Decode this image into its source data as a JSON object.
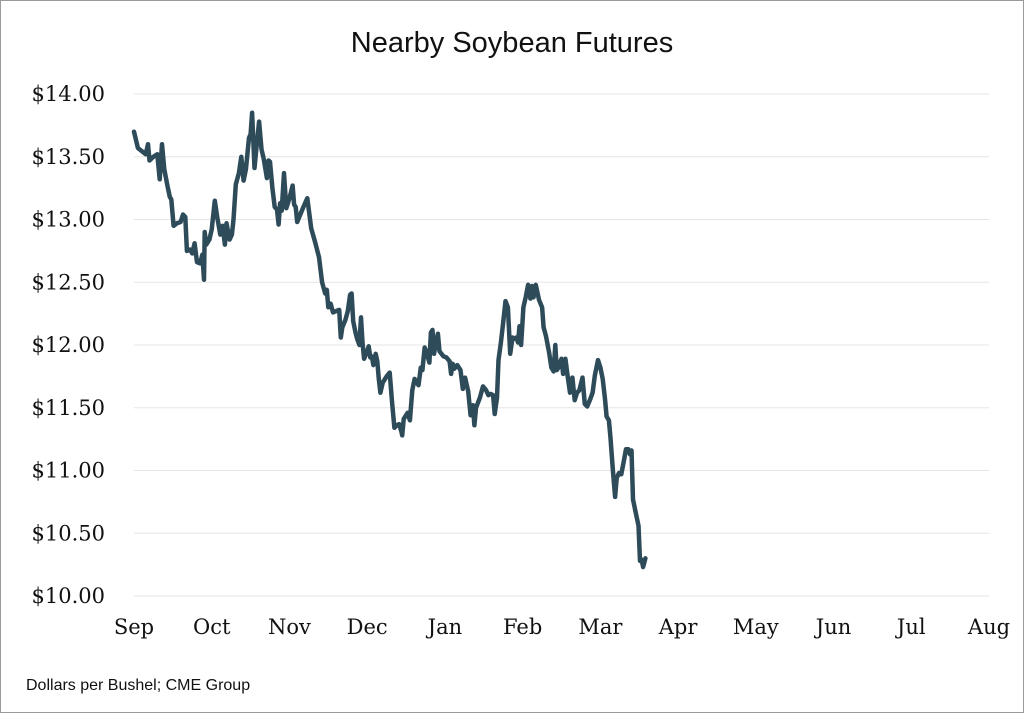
{
  "chart_data": {
    "type": "line",
    "title": "Nearby Soybean Futures",
    "xlabel": "",
    "ylabel": "",
    "y_tick_labels": [
      "$10.00",
      "$10.50",
      "$11.00",
      "$11.50",
      "$12.00",
      "$12.50",
      "$13.00",
      "$13.50",
      "$14.00"
    ],
    "ylim": [
      10.0,
      14.0
    ],
    "x_tick_labels": [
      "Sep",
      "Oct",
      "Nov",
      "Dec",
      "Jan",
      "Feb",
      "Mar",
      "Apr",
      "May",
      "Jun",
      "Jul",
      "Aug"
    ],
    "grid": true,
    "series": [
      {
        "color": "#2e4b5a",
        "points": [
          [
            0,
            13.7
          ],
          [
            0.05,
            13.57
          ],
          [
            0.15,
            13.52
          ],
          [
            0.18,
            13.6
          ],
          [
            0.2,
            13.47
          ],
          [
            0.25,
            13.5
          ],
          [
            0.3,
            13.52
          ],
          [
            0.33,
            13.32
          ],
          [
            0.36,
            13.6
          ],
          [
            0.39,
            13.4
          ],
          [
            0.43,
            13.27
          ],
          [
            0.46,
            13.18
          ],
          [
            0.48,
            13.16
          ],
          [
            0.51,
            12.95
          ],
          [
            0.55,
            12.97
          ],
          [
            0.6,
            12.98
          ],
          [
            0.63,
            13.04
          ],
          [
            0.66,
            13.02
          ],
          [
            0.68,
            12.75
          ],
          [
            0.72,
            12.76
          ],
          [
            0.75,
            12.73
          ],
          [
            0.78,
            12.81
          ],
          [
            0.81,
            12.66
          ],
          [
            0.85,
            12.65
          ],
          [
            0.88,
            12.72
          ],
          [
            0.9,
            12.52
          ],
          [
            0.91,
            12.9
          ],
          [
            0.93,
            12.8
          ],
          [
            0.97,
            12.84
          ],
          [
            1.0,
            12.92
          ],
          [
            1.04,
            13.15
          ],
          [
            1.07,
            13.02
          ],
          [
            1.11,
            12.88
          ],
          [
            1.14,
            12.95
          ],
          [
            1.17,
            12.8
          ],
          [
            1.19,
            12.97
          ],
          [
            1.23,
            12.84
          ],
          [
            1.26,
            12.88
          ],
          [
            1.28,
            13.0
          ],
          [
            1.31,
            13.28
          ],
          [
            1.35,
            13.37
          ],
          [
            1.38,
            13.5
          ],
          [
            1.41,
            13.31
          ],
          [
            1.44,
            13.4
          ],
          [
            1.48,
            13.65
          ],
          [
            1.5,
            13.68
          ],
          [
            1.52,
            13.85
          ],
          [
            1.55,
            13.41
          ],
          [
            1.58,
            13.6
          ],
          [
            1.61,
            13.78
          ],
          [
            1.64,
            13.56
          ],
          [
            1.67,
            13.48
          ],
          [
            1.71,
            13.33
          ],
          [
            1.73,
            13.47
          ],
          [
            1.75,
            13.46
          ],
          [
            1.78,
            13.25
          ],
          [
            1.81,
            13.1
          ],
          [
            1.84,
            13.08
          ],
          [
            1.86,
            12.96
          ],
          [
            1.88,
            13.13
          ],
          [
            1.9,
            13.07
          ],
          [
            1.93,
            13.37
          ],
          [
            1.96,
            13.09
          ],
          [
            2.0,
            13.17
          ],
          [
            2.04,
            13.27
          ],
          [
            2.06,
            13.12
          ],
          [
            2.08,
            13.1
          ],
          [
            2.1,
            12.98
          ],
          [
            2.14,
            13.04
          ],
          [
            2.18,
            13.1
          ],
          [
            2.23,
            13.17
          ],
          [
            2.28,
            12.93
          ],
          [
            2.33,
            12.82
          ],
          [
            2.38,
            12.7
          ],
          [
            2.42,
            12.5
          ],
          [
            2.46,
            12.41
          ],
          [
            2.48,
            12.44
          ],
          [
            2.5,
            12.3
          ],
          [
            2.53,
            12.33
          ],
          [
            2.56,
            12.26
          ],
          [
            2.6,
            12.27
          ],
          [
            2.64,
            12.28
          ],
          [
            2.66,
            12.06
          ],
          [
            2.68,
            12.14
          ],
          [
            2.72,
            12.2
          ],
          [
            2.75,
            12.27
          ],
          [
            2.78,
            12.4
          ],
          [
            2.8,
            12.41
          ],
          [
            2.82,
            12.19
          ],
          [
            2.85,
            12.1
          ],
          [
            2.87,
            12.05
          ],
          [
            2.9,
            12.0
          ],
          [
            2.92,
            12.22
          ],
          [
            2.94,
            12.02
          ],
          [
            2.96,
            11.89
          ],
          [
            3.0,
            11.95
          ],
          [
            3.02,
            11.99
          ],
          [
            3.04,
            11.9
          ],
          [
            3.06,
            11.91
          ],
          [
            3.08,
            11.84
          ],
          [
            3.11,
            11.93
          ],
          [
            3.13,
            11.87
          ],
          [
            3.15,
            11.73
          ],
          [
            3.17,
            11.62
          ],
          [
            3.2,
            11.7
          ],
          [
            3.25,
            11.75
          ],
          [
            3.29,
            11.78
          ],
          [
            3.32,
            11.54
          ],
          [
            3.35,
            11.34
          ],
          [
            3.38,
            11.36
          ],
          [
            3.41,
            11.37
          ],
          [
            3.44,
            11.31
          ],
          [
            3.45,
            11.28
          ],
          [
            3.47,
            11.41
          ],
          [
            3.52,
            11.46
          ],
          [
            3.55,
            11.4
          ],
          [
            3.58,
            11.64
          ],
          [
            3.61,
            11.73
          ],
          [
            3.63,
            11.71
          ],
          [
            3.66,
            11.68
          ],
          [
            3.69,
            11.82
          ],
          [
            3.71,
            11.8
          ],
          [
            3.74,
            11.98
          ],
          [
            3.77,
            11.93
          ],
          [
            3.8,
            11.86
          ],
          [
            3.82,
            12.1
          ],
          [
            3.84,
            12.12
          ],
          [
            3.86,
            11.93
          ],
          [
            3.88,
            12.0
          ],
          [
            3.91,
            12.09
          ],
          [
            3.93,
            11.95
          ],
          [
            3.98,
            11.91
          ],
          [
            4.02,
            11.9
          ],
          [
            4.06,
            11.87
          ],
          [
            4.08,
            11.77
          ],
          [
            4.1,
            11.85
          ],
          [
            4.12,
            11.81
          ],
          [
            4.16,
            11.84
          ],
          [
            4.2,
            11.8
          ],
          [
            4.23,
            11.65
          ],
          [
            4.26,
            11.74
          ],
          [
            4.3,
            11.63
          ],
          [
            4.33,
            11.44
          ],
          [
            4.36,
            11.52
          ],
          [
            4.38,
            11.36
          ],
          [
            4.4,
            11.5
          ],
          [
            4.45,
            11.58
          ],
          [
            4.49,
            11.67
          ],
          [
            4.53,
            11.64
          ],
          [
            4.56,
            11.6
          ],
          [
            4.59,
            11.61
          ],
          [
            4.62,
            11.6
          ],
          [
            4.64,
            11.45
          ],
          [
            4.67,
            11.58
          ],
          [
            4.69,
            11.88
          ],
          [
            4.72,
            12.02
          ],
          [
            4.75,
            12.18
          ],
          [
            4.78,
            12.35
          ],
          [
            4.81,
            12.3
          ],
          [
            4.84,
            11.93
          ],
          [
            4.87,
            12.06
          ],
          [
            4.9,
            12.05
          ],
          [
            4.92,
            12.06
          ],
          [
            4.94,
            12.02
          ],
          [
            4.96,
            12.15
          ],
          [
            4.98,
            12.0
          ],
          [
            5.01,
            12.3
          ],
          [
            5.04,
            12.38
          ],
          [
            5.07,
            12.48
          ],
          [
            5.1,
            12.37
          ],
          [
            5.12,
            12.47
          ],
          [
            5.14,
            12.38
          ],
          [
            5.17,
            12.48
          ],
          [
            5.21,
            12.36
          ],
          [
            5.25,
            12.3
          ],
          [
            5.27,
            12.14
          ],
          [
            5.3,
            12.07
          ],
          [
            5.34,
            11.94
          ],
          [
            5.37,
            11.82
          ],
          [
            5.4,
            11.79
          ],
          [
            5.42,
            12.0
          ],
          [
            5.44,
            11.8
          ],
          [
            5.46,
            11.82
          ],
          [
            5.5,
            11.89
          ],
          [
            5.52,
            11.77
          ],
          [
            5.55,
            11.89
          ],
          [
            5.58,
            11.75
          ],
          [
            5.61,
            11.62
          ],
          [
            5.64,
            11.74
          ],
          [
            5.67,
            11.56
          ],
          [
            5.7,
            11.62
          ],
          [
            5.73,
            11.64
          ],
          [
            5.77,
            11.74
          ],
          [
            5.8,
            11.53
          ],
          [
            5.83,
            11.51
          ],
          [
            5.87,
            11.57
          ],
          [
            5.9,
            11.62
          ],
          [
            5.93,
            11.76
          ],
          [
            5.97,
            11.88
          ],
          [
            6.0,
            11.82
          ],
          [
            6.03,
            11.73
          ],
          [
            6.06,
            11.57
          ],
          [
            6.08,
            11.43
          ],
          [
            6.11,
            11.4
          ],
          [
            6.13,
            11.26
          ],
          [
            6.16,
            11.01
          ],
          [
            6.19,
            10.79
          ],
          [
            6.21,
            10.94
          ],
          [
            6.24,
            10.98
          ],
          [
            6.27,
            10.97
          ],
          [
            6.3,
            11.07
          ],
          [
            6.33,
            11.17
          ],
          [
            6.36,
            11.17
          ],
          [
            6.38,
            11.13
          ],
          [
            6.4,
            11.16
          ],
          [
            6.42,
            10.77
          ],
          [
            6.46,
            10.65
          ],
          [
            6.49,
            10.56
          ],
          [
            6.51,
            10.28
          ],
          [
            6.53,
            10.29
          ],
          [
            6.55,
            10.23
          ],
          [
            6.58,
            10.3
          ]
        ]
      }
    ]
  },
  "footer": {
    "source": "Dollars per Bushel; CME Group"
  }
}
